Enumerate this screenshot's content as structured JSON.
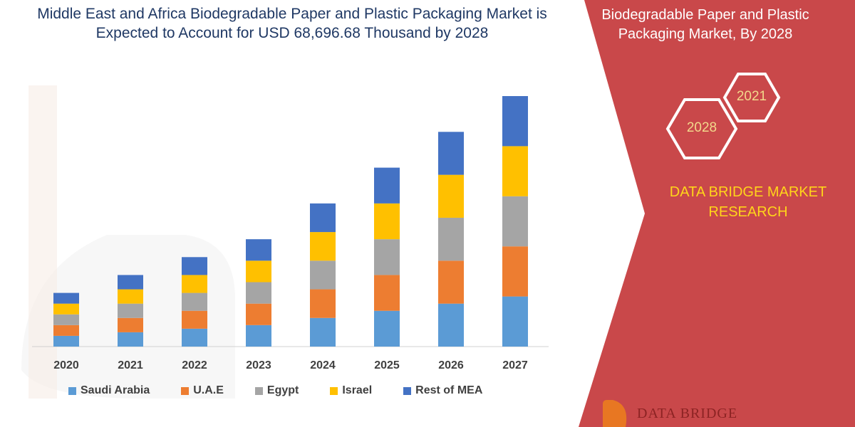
{
  "chart_data": {
    "type": "bar",
    "stacked": true,
    "title": "Middle East and Africa Biodegradable Paper and Plastic Packaging Market is Expected to Account for USD 68,696.68 Thousand  by 2028",
    "categories": [
      "2020",
      "2021",
      "2022",
      "2023",
      "2024",
      "2025",
      "2026",
      "2027"
    ],
    "series": [
      {
        "name": "Saudi Arabia",
        "color": "#5b9bd5",
        "values": [
          15,
          20,
          25,
          30,
          40,
          50,
          60,
          70
        ]
      },
      {
        "name": "U.A.E",
        "color": "#ed7d31",
        "values": [
          15,
          20,
          25,
          30,
          40,
          50,
          60,
          70
        ]
      },
      {
        "name": "Egypt",
        "color": "#a5a5a5",
        "values": [
          15,
          20,
          25,
          30,
          40,
          50,
          60,
          70
        ]
      },
      {
        "name": "Israel",
        "color": "#ffc000",
        "values": [
          15,
          20,
          25,
          30,
          40,
          50,
          60,
          70
        ]
      },
      {
        "name": "Rest of MEA",
        "color": "#4472c4",
        "values": [
          15,
          20,
          25,
          30,
          40,
          50,
          60,
          70
        ]
      }
    ],
    "ylim": [
      0,
      350
    ],
    "y_axis_visible": false,
    "grid": false,
    "legend_position": "bottom"
  },
  "side_panel": {
    "title": "Biodegradable Paper and Plastic Packaging Market, By 2028",
    "hex_year_back": "2021",
    "hex_year_front": "2028",
    "brand": "DATA BRIDGE MARKET RESEARCH",
    "logo_text": "DATA BRIDGE",
    "panel_color": "#c9484a",
    "hex_color": "#ffffff",
    "brand_color": "#ffd51a"
  }
}
